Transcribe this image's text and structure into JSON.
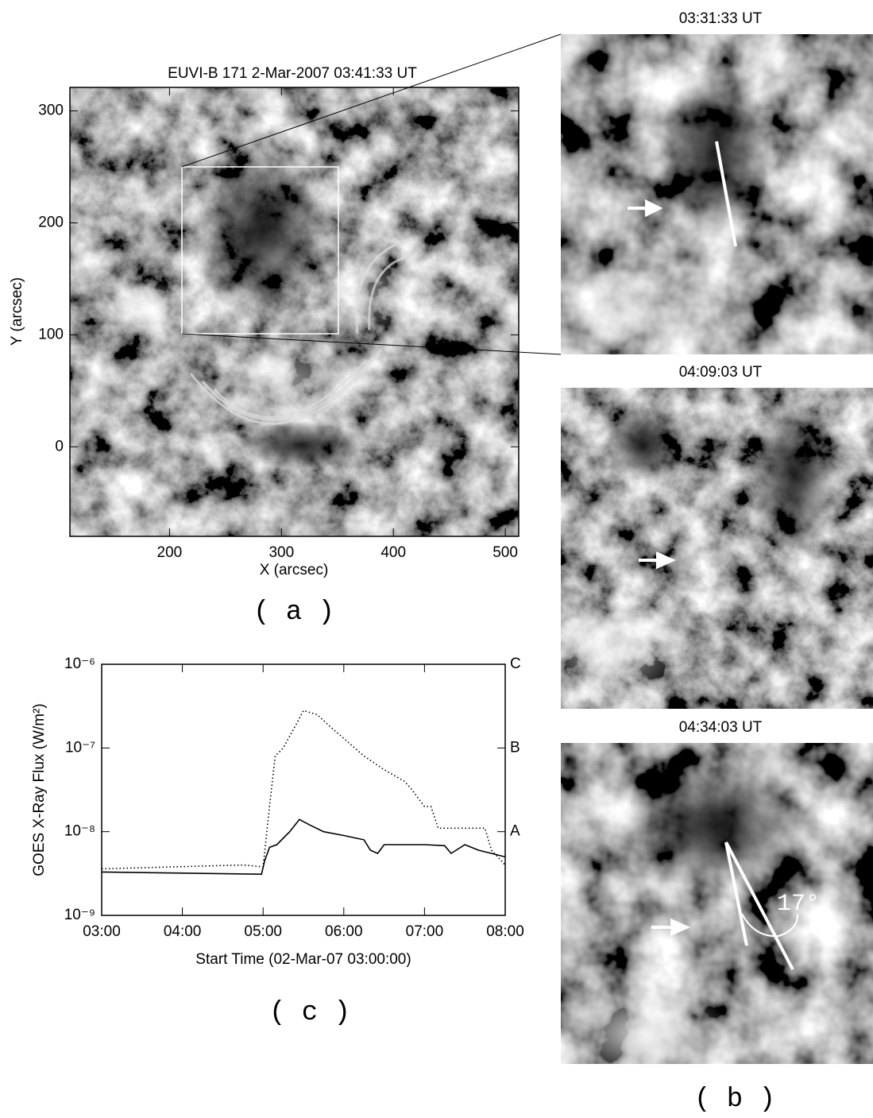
{
  "chart_data": [
    {
      "type": "image",
      "title": "EUVI-B 171  2-Mar-2007 03:41:33 UT",
      "x_label": "X (arcsec)",
      "y_label": "Y (arcsec)",
      "xlim": [
        111,
        512
      ],
      "ylim": [
        -80,
        321
      ],
      "xticks": [
        200,
        300,
        400,
        500
      ],
      "yticks": [
        0,
        100,
        200,
        300
      ],
      "panel_label": "( a )"
    },
    {
      "type": "image-series",
      "titles": [
        "03:31:33 UT",
        "04:09:03 UT",
        "04:34:03 UT"
      ],
      "annotation": "17°",
      "panel_label": "( b )"
    },
    {
      "type": "line",
      "y_label": "GOES X-Ray Flux (W/m²)",
      "x_label": "Start Time (02-Mar-07 03:00:00)",
      "log_y": true,
      "xlim": [
        3,
        8
      ],
      "ylim": [
        1e-09,
        1e-06
      ],
      "xticks": [
        {
          "value": 3,
          "label": "03:00"
        },
        {
          "value": 4,
          "label": "04:00"
        },
        {
          "value": 5,
          "label": "05:00"
        },
        {
          "value": 6,
          "label": "06:00"
        },
        {
          "value": 7,
          "label": "07:00"
        },
        {
          "value": 8,
          "label": "08:00"
        }
      ],
      "yticks": [
        {
          "value": 1e-09,
          "label": "10⁻⁹"
        },
        {
          "value": 1e-08,
          "label": "10⁻⁸"
        },
        {
          "value": 1e-07,
          "label": "10⁻⁷"
        },
        {
          "value": 1e-06,
          "label": "10⁻⁶"
        }
      ],
      "y2lim": [
        1e-09,
        1e-06
      ],
      "y2ticks": [
        {
          "value": 1e-08,
          "label": "A"
        },
        {
          "value": 1e-07,
          "label": "B"
        },
        {
          "value": 1e-06,
          "label": "C"
        }
      ],
      "series": [
        {
          "color": "#000000",
          "dash": "solid",
          "x": [
            3,
            4,
            4.98,
            5.02,
            5.08,
            5.17,
            5.33,
            5.45,
            5.58,
            5.75,
            6,
            6.25,
            6.33,
            6.42,
            6.5,
            7,
            7.25,
            7.33,
            7.5,
            7.67,
            7.83,
            8
          ],
          "values": [
            3.3e-09,
            3.2e-09,
            3.1e-09,
            4.5e-09,
            6.5e-09,
            7e-09,
            1e-08,
            1.4e-08,
            1.2e-08,
            1e-08,
            9e-09,
            8e-09,
            6e-09,
            5.5e-09,
            7e-09,
            7e-09,
            6.8e-09,
            5.5e-09,
            7e-09,
            6e-09,
            5.5e-09,
            5e-09
          ]
        },
        {
          "color": "#000000",
          "dash": "dotted",
          "x": [
            3,
            4.75,
            5,
            5.08,
            5.15,
            5.25,
            5.42,
            5.5,
            5.67,
            5.83,
            6,
            6.25,
            6.5,
            6.75,
            6.83,
            7,
            7.08,
            7.17,
            7.75,
            7.83,
            8
          ],
          "values": [
            3.6e-09,
            4e-09,
            3.8e-09,
            2e-08,
            8e-08,
            1e-07,
            2e-07,
            2.8e-07,
            2.5e-07,
            1.8e-07,
            1.3e-07,
            8e-08,
            5.5e-08,
            4e-08,
            3.3e-08,
            2e-08,
            2e-08,
            1.1e-08,
            1.1e-08,
            6e-09,
            4e-09
          ]
        }
      ],
      "panel_label": "( c )"
    }
  ]
}
